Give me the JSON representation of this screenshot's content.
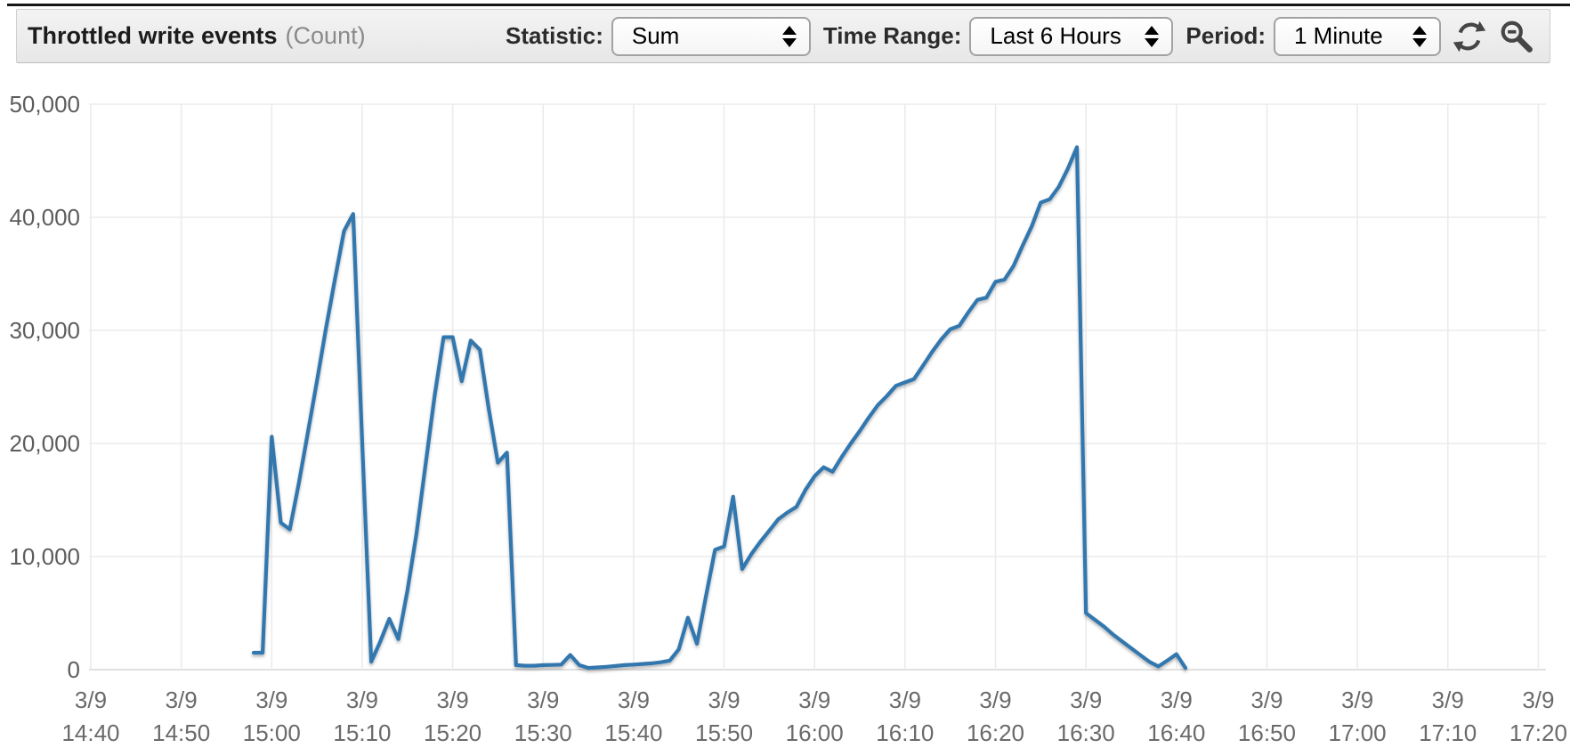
{
  "header": {
    "title": "Throttled write events",
    "unit_label": "(Count)"
  },
  "controls": {
    "statistic_label": "Statistic:",
    "statistic_value": "Sum",
    "time_range_label": "Time Range:",
    "time_range_value": "Last 6 Hours",
    "period_label": "Period:",
    "period_value": "1 Minute",
    "icons": [
      "refresh-icon",
      "zoom-out-icon"
    ]
  },
  "colors": {
    "line": "#3377ae",
    "grid": "#ebebeb",
    "baseline": "#d6d6d6",
    "axis_text": "#5d5d5d",
    "tick_text": "#6a6a6a"
  },
  "chart_data": {
    "type": "line",
    "title": "Throttled write events",
    "ylabel": "Count",
    "xlabel": "",
    "ylim": [
      0,
      50000
    ],
    "grid": true,
    "legend": "none",
    "y_tick_values": [
      50000,
      40000,
      30000,
      20000,
      10000,
      0
    ],
    "y_tick_labels": [
      "50,000",
      "40,000",
      "30,000",
      "20,000",
      "10,000",
      "0"
    ],
    "x_tick_date": "3/9",
    "x_tick_times": [
      "14:40",
      "14:50",
      "15:00",
      "15:10",
      "15:20",
      "15:30",
      "15:40",
      "15:50",
      "16:00",
      "16:10",
      "16:20",
      "16:30",
      "16:40",
      "16:50",
      "17:00",
      "17:10",
      "17:20"
    ],
    "x_axis_note": "points are [minutes after 14:40, value]; period 1 minute",
    "series": [
      {
        "name": "Throttled write events (Sum)",
        "points": [
          [
            18,
            1500
          ],
          [
            19,
            1500
          ],
          [
            20,
            20600
          ],
          [
            21,
            13000
          ],
          [
            22,
            12400
          ],
          [
            23,
            16500
          ],
          [
            24,
            21000
          ],
          [
            25,
            25500
          ],
          [
            26,
            30200
          ],
          [
            27,
            34600
          ],
          [
            28,
            38800
          ],
          [
            29,
            40300
          ],
          [
            30,
            20000
          ],
          [
            31,
            700
          ],
          [
            32,
            2500
          ],
          [
            33,
            4500
          ],
          [
            34,
            2700
          ],
          [
            35,
            7000
          ],
          [
            36,
            12000
          ],
          [
            37,
            18100
          ],
          [
            38,
            24200
          ],
          [
            39,
            29400
          ],
          [
            40,
            29400
          ],
          [
            41,
            25500
          ],
          [
            42,
            29100
          ],
          [
            43,
            28300
          ],
          [
            44,
            23000
          ],
          [
            45,
            18300
          ],
          [
            46,
            19200
          ],
          [
            47,
            400
          ],
          [
            48,
            350
          ],
          [
            49,
            350
          ],
          [
            50,
            400
          ],
          [
            51,
            420
          ],
          [
            52,
            450
          ],
          [
            53,
            1300
          ],
          [
            54,
            400
          ],
          [
            55,
            150
          ],
          [
            56,
            200
          ],
          [
            57,
            250
          ],
          [
            58,
            320
          ],
          [
            59,
            400
          ],
          [
            60,
            450
          ],
          [
            61,
            500
          ],
          [
            62,
            560
          ],
          [
            63,
            650
          ],
          [
            64,
            800
          ],
          [
            65,
            1800
          ],
          [
            66,
            4600
          ],
          [
            67,
            2300
          ],
          [
            68,
            6500
          ],
          [
            69,
            10600
          ],
          [
            70,
            10900
          ],
          [
            71,
            15300
          ],
          [
            72,
            8900
          ],
          [
            73,
            10200
          ],
          [
            74,
            11300
          ],
          [
            75,
            12300
          ],
          [
            76,
            13300
          ],
          [
            77,
            13900
          ],
          [
            78,
            14400
          ],
          [
            79,
            15900
          ],
          [
            80,
            17100
          ],
          [
            81,
            17900
          ],
          [
            82,
            17500
          ],
          [
            83,
            18800
          ],
          [
            84,
            20000
          ],
          [
            85,
            21100
          ],
          [
            86,
            22300
          ],
          [
            87,
            23400
          ],
          [
            88,
            24200
          ],
          [
            89,
            25100
          ],
          [
            90,
            25400
          ],
          [
            91,
            25700
          ],
          [
            92,
            26900
          ],
          [
            93,
            28100
          ],
          [
            94,
            29200
          ],
          [
            95,
            30100
          ],
          [
            96,
            30400
          ],
          [
            97,
            31600
          ],
          [
            98,
            32700
          ],
          [
            99,
            32900
          ],
          [
            100,
            34300
          ],
          [
            101,
            34500
          ],
          [
            102,
            35700
          ],
          [
            103,
            37500
          ],
          [
            104,
            39200
          ],
          [
            105,
            41300
          ],
          [
            106,
            41600
          ],
          [
            107,
            42700
          ],
          [
            108,
            44300
          ],
          [
            109,
            46200
          ],
          [
            110,
            5000
          ],
          [
            111,
            4400
          ],
          [
            112,
            3800
          ],
          [
            113,
            3100
          ],
          [
            114,
            2500
          ],
          [
            115,
            1900
          ],
          [
            116,
            1300
          ],
          [
            117,
            700
          ],
          [
            118,
            280
          ],
          [
            119,
            800
          ],
          [
            120,
            1370
          ],
          [
            121,
            150
          ]
        ]
      }
    ]
  }
}
